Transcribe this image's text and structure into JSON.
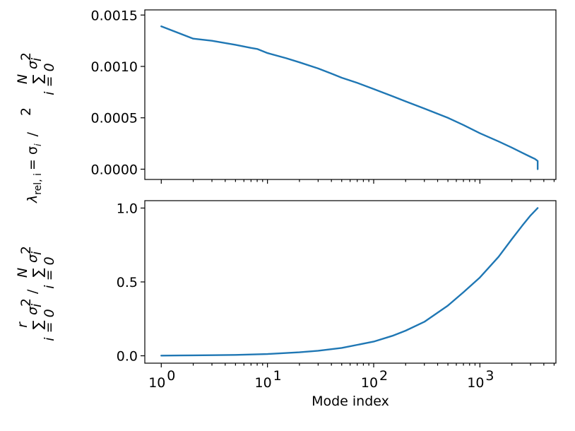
{
  "chart_data": [
    {
      "type": "line",
      "id": "top",
      "xscale": "log",
      "xlim": [
        0.7,
        5200
      ],
      "ylim": [
        -0.0001,
        0.00155
      ],
      "yticks": [
        0.0,
        0.0005,
        0.001,
        0.0015
      ],
      "ytick_labels": [
        "0.0000",
        "0.0005",
        "0.0010",
        "0.0015"
      ],
      "ylabel_main": "λ",
      "ylabel_sub": "rel, i",
      "ylabel_rest": "= σ",
      "ylabel_sum_upper": "N",
      "ylabel_sum_lower": "i = 0",
      "ylabel_sigma_sub": "i",
      "ylabel_sigma_sup": "2",
      "ylabel_slash": "/",
      "ylabel_sum_symbol": "∑",
      "ylabel_sigma": "σ",
      "series": [
        {
          "color": "#1f77b4",
          "x": [
            1,
            2,
            3,
            5,
            7,
            8,
            10,
            15,
            20,
            30,
            40,
            50,
            70,
            100,
            150,
            200,
            300,
            500,
            700,
            1000,
            1500,
            2000,
            2500,
            3000,
            3300,
            3500,
            3500
          ],
          "y": [
            0.00139,
            0.00127,
            0.00125,
            0.00121,
            0.00118,
            0.00117,
            0.00113,
            0.00108,
            0.00104,
            0.00098,
            0.00093,
            0.00089,
            0.00084,
            0.00078,
            0.00071,
            0.00066,
            0.00059,
            0.0005,
            0.00043,
            0.00035,
            0.00027,
            0.00021,
            0.00016,
            0.00012,
            0.0001,
            8e-05,
            0.0
          ]
        }
      ]
    },
    {
      "type": "line",
      "id": "bottom",
      "xscale": "log",
      "xlim": [
        0.7,
        5200
      ],
      "ylim": [
        -0.05,
        1.05
      ],
      "yticks": [
        0.0,
        0.5,
        1.0
      ],
      "ytick_labels": [
        "0.0",
        "0.5",
        "1.0"
      ],
      "xticks": [
        1,
        10,
        100,
        1000
      ],
      "xtick_base": "10",
      "xtick_exps": [
        "0",
        "1",
        "2",
        "3"
      ],
      "xlabel": "Mode index",
      "ylabel_sum_upper": "r",
      "ylabel_sum_lower": "i = 0",
      "ylabel_sum_upper2": "N",
      "ylabel_sum_lower2": "i = 0",
      "ylabel_sum_symbol": "∑",
      "ylabel_sigma": "σ",
      "ylabel_sigma_sub": "i",
      "ylabel_sigma_sup": "2",
      "ylabel_slash": "/",
      "series": [
        {
          "color": "#1f77b4",
          "x": [
            1,
            2,
            3,
            5,
            10,
            20,
            30,
            50,
            100,
            150,
            200,
            300,
            500,
            700,
            1000,
            1500,
            2000,
            2500,
            3000,
            3500
          ],
          "y": [
            0.001,
            0.003,
            0.004,
            0.006,
            0.012,
            0.024,
            0.034,
            0.053,
            0.096,
            0.135,
            0.17,
            0.23,
            0.34,
            0.43,
            0.53,
            0.67,
            0.79,
            0.88,
            0.95,
            1.0
          ]
        }
      ]
    }
  ]
}
